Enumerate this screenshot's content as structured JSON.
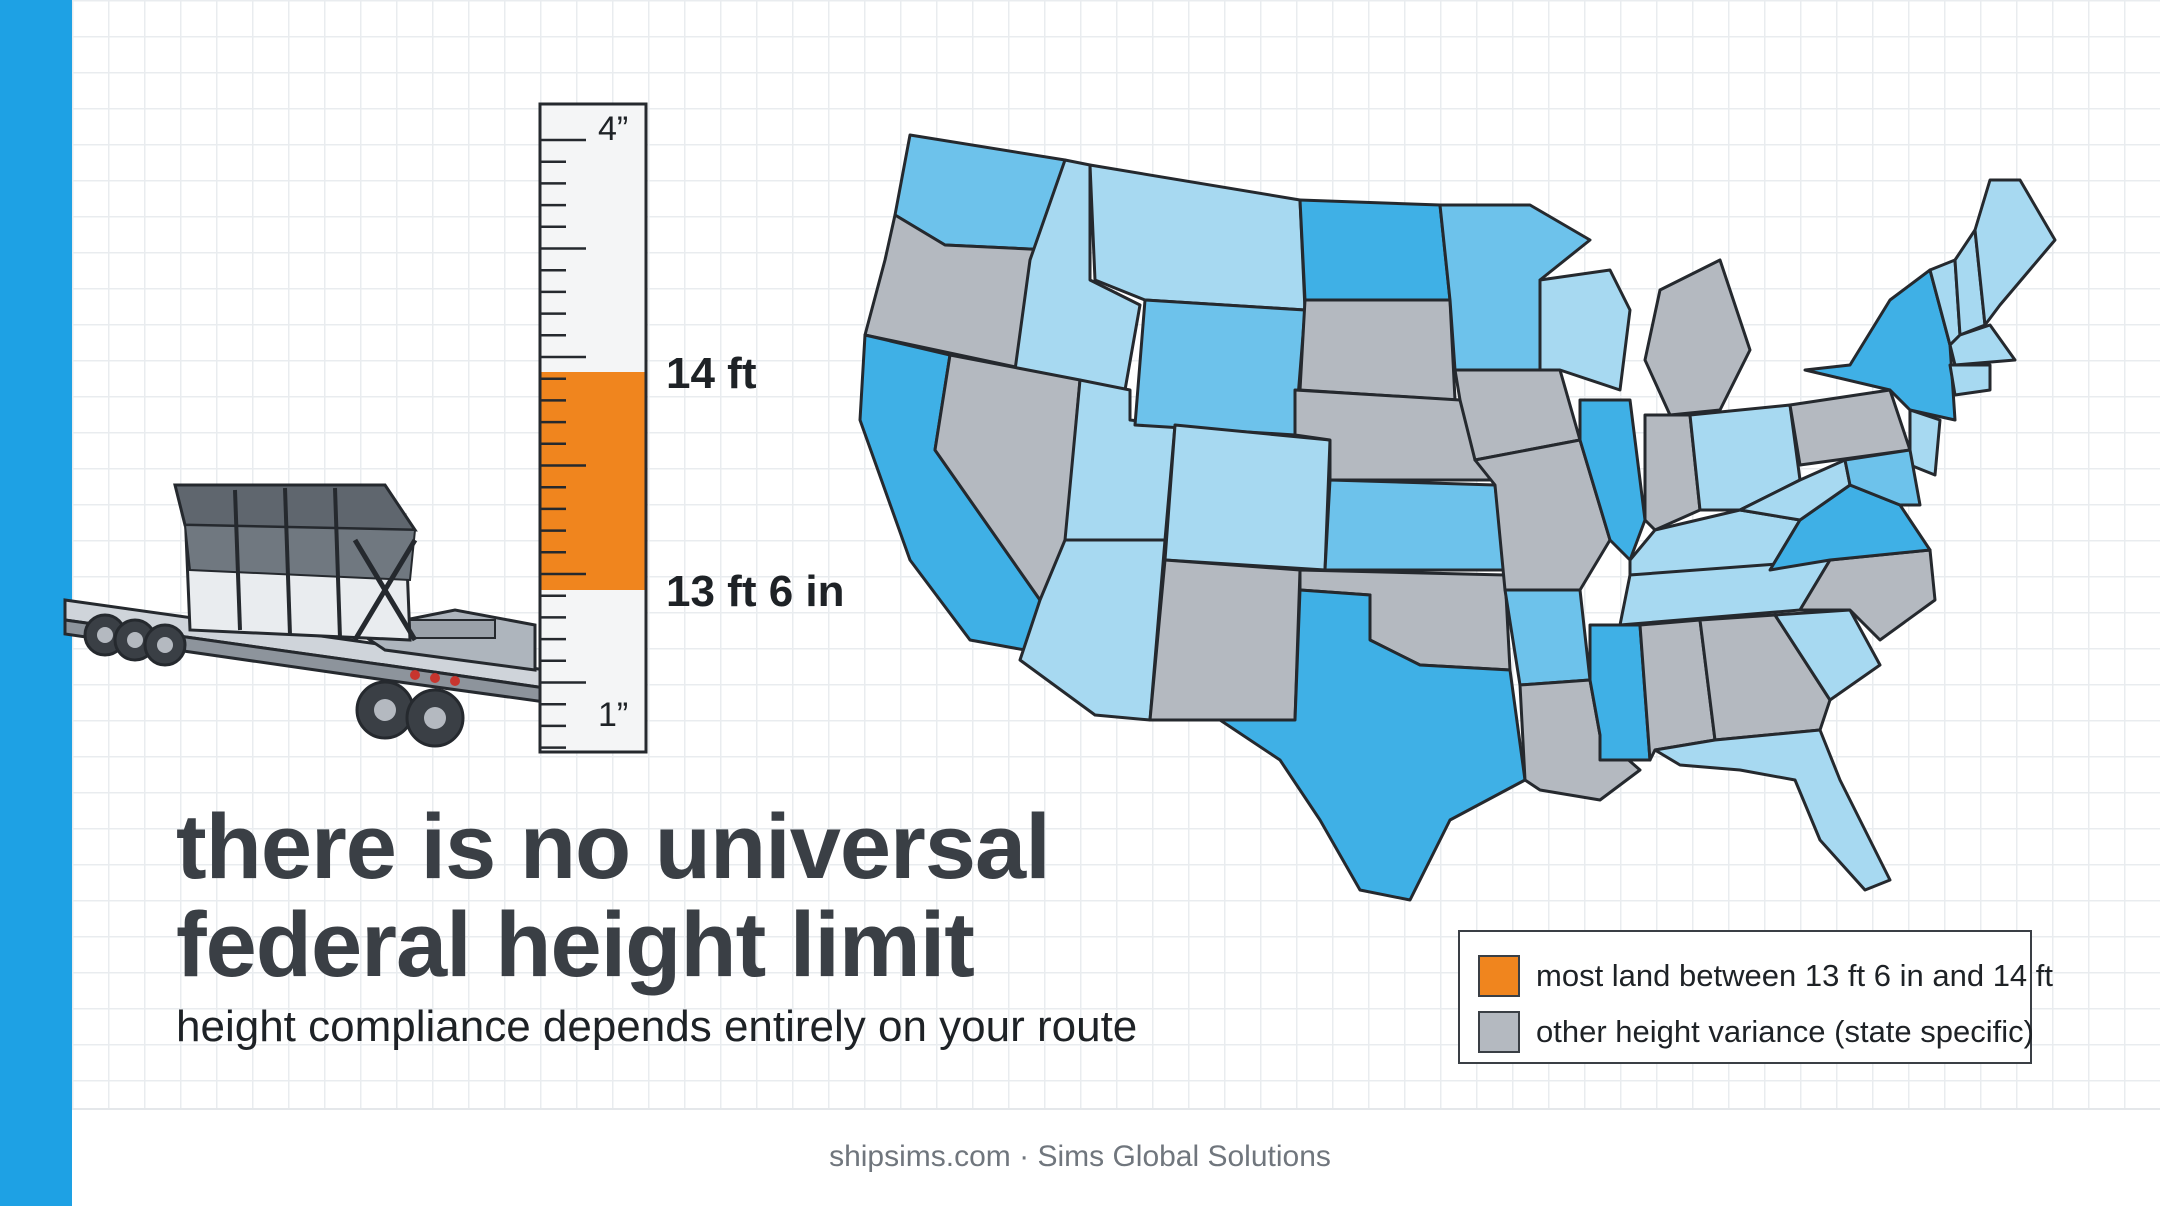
{
  "colors": {
    "accent_bar": "#1ea1e4",
    "highlight_range": "#f0851e",
    "state_gray": "#b4b9c0",
    "state_blue_light": "#a7d9f1",
    "state_blue_mid": "#6dc2eb",
    "state_blue_dark": "#3fb0e6",
    "outline": "#25292e"
  },
  "gauge": {
    "top_label": "4”",
    "upper_limit_label": "14 ft",
    "lower_limit_label": "13 ft 6 in",
    "bottom_label": "1”"
  },
  "headline": "there is no universal federal height limit",
  "subhead": "height compliance depends entirely on your route",
  "legend": {
    "items": [
      {
        "label": "most land between 13 ft 6 in and 14 ft",
        "color": "#f0851e"
      },
      {
        "label": "other height variance (state specific)",
        "color": "#b4b9c0"
      }
    ]
  },
  "footer": "shipsims.com · Sims Global Solutions",
  "icons": [
    "lowboy-truck-icon",
    "height-gauge-icon",
    "us-map"
  ]
}
